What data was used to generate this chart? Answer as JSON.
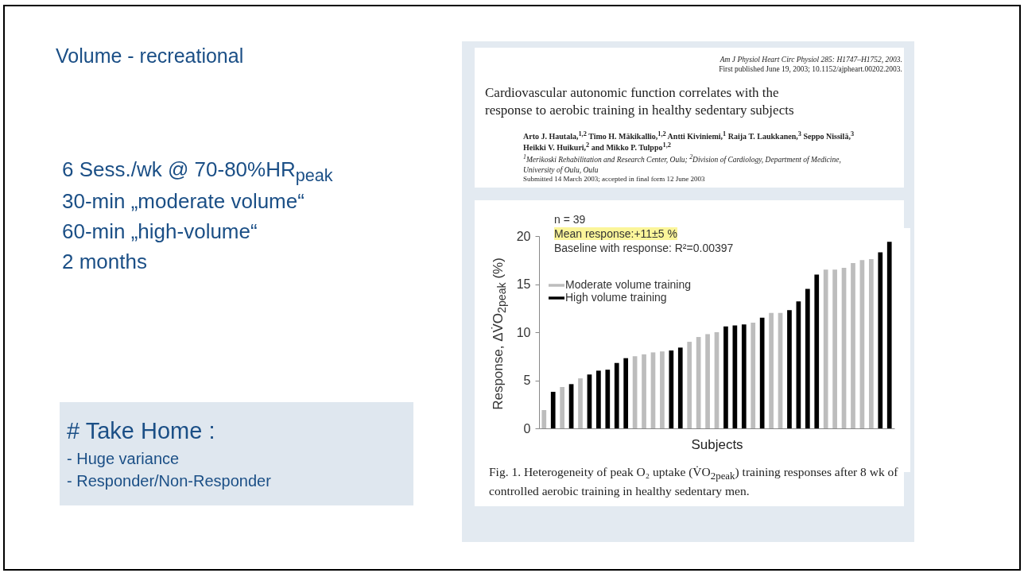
{
  "chart_data": {
    "type": "bar",
    "title": "Volume - recreational",
    "xlabel": "Subjects",
    "ylabel": "Response, ΔV̇O$_{2peak}$ (%)",
    "categories": [
      null,
      null,
      null,
      null,
      null,
      null,
      null,
      null,
      null,
      null,
      null,
      null,
      null,
      null,
      null,
      null,
      null,
      null,
      null,
      null,
      null,
      null,
      null,
      null,
      null,
      null,
      null,
      null,
      null,
      null,
      null,
      null,
      null,
      null,
      null,
      null,
      null,
      null,
      null
    ],
    "series": [
      {
        "name": "Moderate volume training",
        "color": "#bdbdbd",
        "values": [
          1.9,
          null,
          4.3,
          null,
          5.2,
          null,
          null,
          null,
          null,
          null,
          7.5,
          7.7,
          7.9,
          8.0,
          null,
          null,
          9.0,
          9.5,
          9.8,
          10.0,
          null,
          null,
          null,
          11.0,
          null,
          12.0,
          12.0,
          null,
          null,
          null,
          null,
          16.5,
          16.5,
          16.7,
          17.2,
          17.5,
          17.6,
          null,
          null
        ]
      },
      {
        "name": "High volume training",
        "color": "#000000",
        "values": [
          null,
          3.8,
          null,
          4.6,
          null,
          5.6,
          6.0,
          6.1,
          6.8,
          7.3,
          null,
          null,
          null,
          null,
          8.1,
          8.4,
          null,
          null,
          null,
          null,
          10.6,
          10.7,
          10.8,
          null,
          11.5,
          null,
          null,
          12.3,
          13.2,
          14.5,
          16.0,
          null,
          null,
          null,
          null,
          null,
          null,
          18.3,
          19.4
        ]
      }
    ],
    "ylim": [
      0,
      20
    ],
    "yticks": [
      0,
      5,
      10,
      15,
      20
    ],
    "grid": false,
    "legend": "top left",
    "annotations": [
      "6 Sess./wk @ 70-80%HR$_{peak}$",
      "30-min „moderate volume“",
      "60-min „high-volume“",
      "2 months",
      "# Take Home :",
      "- Huge variance",
      "- Responder/Non-Responder",
      "Am J Physiol Heart Circ Physiol 285: H1747–H1752, 2003.",
      "First published June 19, 2003; 10.1152/ajpheart.00202.2003.",
      "Cardiovascular autonomic function correlates with the response to aerobic training in healthy sedentary subjects",
      "Arto J. Hautala,$^{1,2}$ Timo H. Mäkikallio,$^{1,2}$ Antti Kiviniemi,$^{1}$ Raija T. Laukkanen,$^{3}$ Seppo Nissilä,$^{3}$ Heikki V. Huikuri,$^{2}$ and Mikko P. Tulppo$^{1,2}$",
      "$^{1}$Merikoski Rehabilitation and Research Center, Oulu; $^{2}$Division of Cardiology, Department of Medicine, University of Oulu, Oulu",
      "Submitted 14 March 2003; accepted in final form 12 June 2003",
      "n = 39",
      "Mean response:+11±5 %",
      "Baseline with response: R²=0.00397",
      "Fig. 1. Heterogeneity of peak O₂ uptake (V̇O$_{2peak}$) training responses after 8 wk of controlled aerobic training in healthy sedentary men."
    ]
  }
}
